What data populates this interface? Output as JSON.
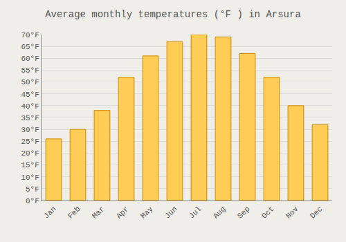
{
  "chart_data": {
    "type": "bar",
    "title": "Average monthly temperatures (°F ) in Arsura",
    "categories": [
      "Jan",
      "Feb",
      "Mar",
      "Apr",
      "May",
      "Jun",
      "Jul",
      "Aug",
      "Sep",
      "Oct",
      "Nov",
      "Dec"
    ],
    "values": [
      26,
      30,
      38,
      52,
      61,
      67,
      70,
      69,
      62,
      52,
      40,
      32
    ],
    "color": "#FFCC55",
    "ylim": [
      0,
      70
    ],
    "yticks": [
      {
        "value": 0,
        "label": "0°F"
      },
      {
        "value": 5,
        "label": "5°F"
      },
      {
        "value": 10,
        "label": "10°F"
      },
      {
        "value": 15,
        "label": "15°F"
      },
      {
        "value": 20,
        "label": "20°F"
      },
      {
        "value": 25,
        "label": "25°F"
      },
      {
        "value": 30,
        "label": "30°F"
      },
      {
        "value": 35,
        "label": "35°F"
      },
      {
        "value": 40,
        "label": "40°F"
      },
      {
        "value": 45,
        "label": "45°F"
      },
      {
        "value": 50,
        "label": "50°F"
      },
      {
        "value": 55,
        "label": "55°F"
      },
      {
        "value": 60,
        "label": "60°F"
      },
      {
        "value": 65,
        "label": "65°F"
      },
      {
        "value": 70,
        "label": "70°F"
      }
    ],
    "grid": true
  }
}
